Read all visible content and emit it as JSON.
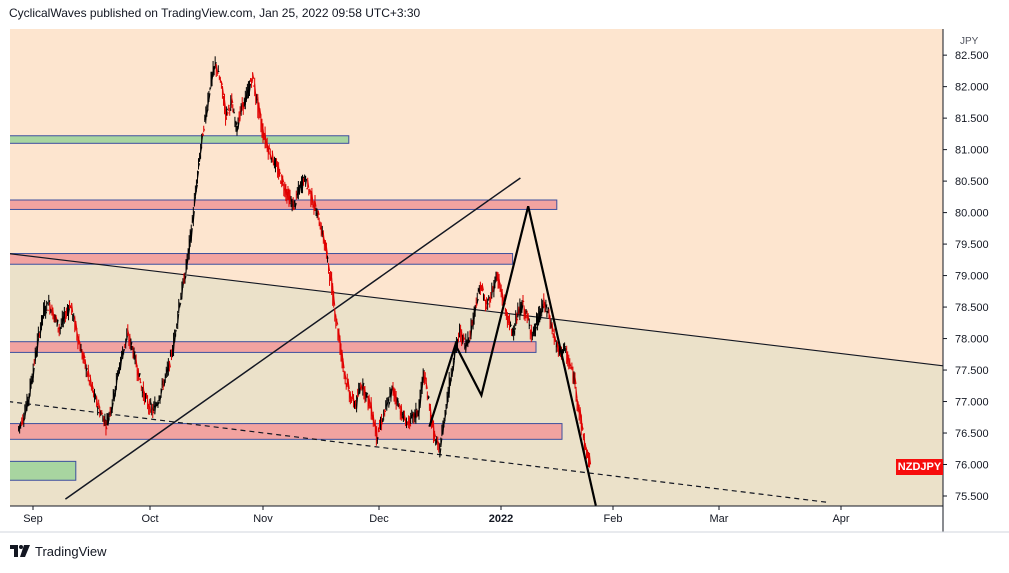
{
  "header": {
    "attribution": "CyclicalWaves published on TradingView.com, Jan 25, 2022 09:58 UTC+3:30"
  },
  "footer": {
    "brand": "TradingView"
  },
  "colors": {
    "background": "#fde5cf",
    "triangle_fill": "#ebe1c9",
    "price_up": "#000000",
    "price_down": "#e00000",
    "zone_green": "#a8d5a0",
    "zone_red": "#f2a3a0",
    "zone_border": "#3d4f9e",
    "tag": "#f70d0d"
  },
  "chart_data": {
    "type": "line",
    "symbol_tag": "NZDJPY",
    "currency": "JPY",
    "ylim": [
      75.3,
      82.8
    ],
    "y_ticks": [
      "82.500",
      "82.000",
      "81.500",
      "81.000",
      "80.500",
      "80.000",
      "79.500",
      "79.000",
      "78.500",
      "78.000",
      "77.500",
      "77.000",
      "76.500",
      "76.000",
      "75.500"
    ],
    "x_ticks": [
      "Sep",
      "Oct",
      "Nov",
      "Dec",
      "2022",
      "Feb",
      "Mar",
      "Apr"
    ],
    "series": [
      {
        "values": [
          [
            1,
            76.55
          ],
          [
            3,
            76.75
          ],
          [
            5,
            77.05
          ],
          [
            7,
            77.55
          ],
          [
            9,
            78.05
          ],
          [
            11,
            78.45
          ],
          [
            13,
            78.55
          ],
          [
            15,
            78.35
          ],
          [
            17,
            78.15
          ],
          [
            19,
            78.35
          ],
          [
            21,
            78.55
          ],
          [
            23,
            78.2
          ],
          [
            25,
            77.85
          ],
          [
            27,
            77.55
          ],
          [
            29,
            77.25
          ],
          [
            31,
            77.0
          ],
          [
            33,
            76.8
          ],
          [
            35,
            76.65
          ],
          [
            37,
            76.95
          ],
          [
            39,
            77.35
          ],
          [
            41,
            77.75
          ],
          [
            43,
            78.05
          ],
          [
            45,
            77.85
          ],
          [
            47,
            77.5
          ],
          [
            49,
            77.15
          ],
          [
            51,
            76.95
          ],
          [
            53,
            76.85
          ],
          [
            55,
            77.05
          ],
          [
            57,
            77.3
          ],
          [
            59,
            77.55
          ],
          [
            61,
            77.95
          ],
          [
            63,
            78.55
          ],
          [
            65,
            78.95
          ],
          [
            67,
            79.5
          ],
          [
            69,
            80.2
          ],
          [
            71,
            80.95
          ],
          [
            73,
            81.5
          ],
          [
            75,
            82.05
          ],
          [
            77,
            82.35
          ],
          [
            79,
            82.05
          ],
          [
            81,
            81.55
          ],
          [
            83,
            81.75
          ],
          [
            85,
            81.35
          ],
          [
            87,
            81.65
          ],
          [
            89,
            81.85
          ],
          [
            91,
            82.15
          ],
          [
            93,
            81.75
          ],
          [
            95,
            81.3
          ],
          [
            97,
            81.05
          ],
          [
            99,
            80.85
          ],
          [
            101,
            80.65
          ],
          [
            103,
            80.45
          ],
          [
            105,
            80.25
          ],
          [
            107,
            80.1
          ],
          [
            109,
            80.35
          ],
          [
            111,
            80.55
          ],
          [
            113,
            80.35
          ],
          [
            115,
            80.1
          ],
          [
            117,
            79.85
          ],
          [
            119,
            79.5
          ],
          [
            121,
            79.0
          ],
          [
            123,
            78.4
          ],
          [
            125,
            77.85
          ],
          [
            127,
            77.35
          ],
          [
            129,
            77.05
          ],
          [
            131,
            76.95
          ],
          [
            133,
            77.3
          ],
          [
            135,
            77.1
          ],
          [
            137,
            76.85
          ],
          [
            139,
            76.45
          ],
          [
            141,
            76.7
          ],
          [
            143,
            76.95
          ],
          [
            145,
            77.2
          ],
          [
            147,
            77.0
          ],
          [
            149,
            76.75
          ],
          [
            151,
            76.65
          ],
          [
            153,
            76.75
          ],
          [
            155,
            76.85
          ],
          [
            157,
            77.45
          ],
          [
            159,
            77.0
          ],
          [
            161,
            76.45
          ],
          [
            163,
            76.2
          ],
          [
            165,
            76.75
          ],
          [
            167,
            77.3
          ],
          [
            169,
            77.8
          ],
          [
            171,
            78.1
          ],
          [
            173,
            77.9
          ],
          [
            175,
            78.1
          ],
          [
            177,
            78.55
          ],
          [
            179,
            78.85
          ],
          [
            181,
            78.5
          ],
          [
            183,
            78.7
          ],
          [
            185,
            79.0
          ],
          [
            187,
            78.7
          ],
          [
            189,
            78.35
          ],
          [
            191,
            78.1
          ],
          [
            193,
            78.35
          ],
          [
            195,
            78.55
          ],
          [
            197,
            78.3
          ],
          [
            199,
            78.05
          ],
          [
            201,
            78.3
          ],
          [
            203,
            78.55
          ],
          [
            205,
            78.4
          ],
          [
            207,
            78.05
          ],
          [
            209,
            77.75
          ],
          [
            211,
            77.85
          ],
          [
            213,
            77.6
          ],
          [
            215,
            77.35
          ],
          [
            217,
            76.8
          ],
          [
            219,
            76.3
          ],
          [
            221,
            76.0
          ]
        ]
      }
    ],
    "zones": [
      {
        "color": "green",
        "y_low": 81.1,
        "y_high": 81.22,
        "x_start": -5,
        "x_end": 128
      },
      {
        "color": "red",
        "y_low": 80.05,
        "y_high": 80.2,
        "x_start": -5,
        "x_end": 208
      },
      {
        "color": "red",
        "y_low": 79.18,
        "y_high": 79.35,
        "x_start": -5,
        "x_end": 191
      },
      {
        "color": "red",
        "y_low": 77.78,
        "y_high": 77.95,
        "x_start": -5,
        "x_end": 200
      },
      {
        "color": "red",
        "y_low": 76.4,
        "y_high": 76.65,
        "x_start": -5,
        "x_end": 210
      },
      {
        "color": "green",
        "y_low": 75.75,
        "y_high": 76.05,
        "x_start": -5,
        "x_end": 23
      }
    ]
  }
}
